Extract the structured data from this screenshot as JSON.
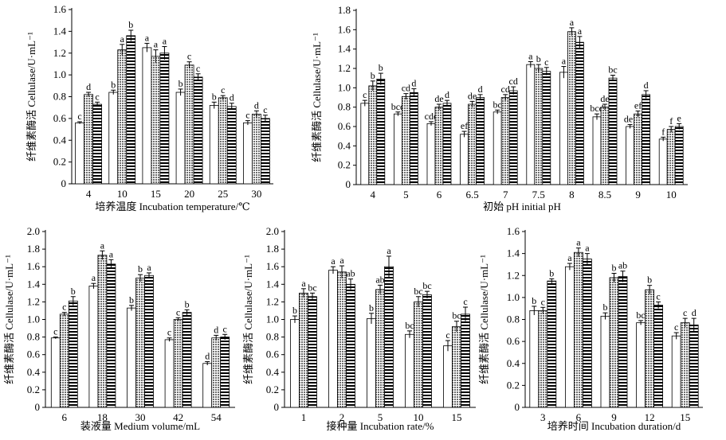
{
  "chart_data": [
    {
      "type": "bar",
      "xlabel": "培养温度 Incubation temperature/℃",
      "ylabel": "纤维素酶活 Cellulase/U·mL⁻¹",
      "ylim": [
        0,
        1.6
      ],
      "yticks": [
        "0",
        "0.2",
        "0.4",
        "0.6",
        "0.8",
        "1.0",
        "1.2",
        "1.4",
        "1.6"
      ],
      "categories": [
        "4",
        "10",
        "15",
        "20",
        "25",
        "30"
      ],
      "series": [
        {
          "pattern": "white",
          "values": [
            0.56,
            0.84,
            1.25,
            0.84,
            0.72,
            0.56
          ],
          "errors": [
            0.01,
            0.02,
            0.04,
            0.03,
            0.03,
            0.02
          ],
          "letters": [
            "c",
            "b",
            "a",
            "b",
            "b",
            "c"
          ]
        },
        {
          "pattern": "crosshatch",
          "values": [
            0.82,
            1.23,
            1.17,
            1.09,
            0.79,
            0.64
          ],
          "errors": [
            0.02,
            0.05,
            0.06,
            0.03,
            0.02,
            0.03
          ],
          "letters": [
            "d",
            "a",
            "a",
            "c",
            "c",
            "d"
          ]
        },
        {
          "pattern": "stripes",
          "values": [
            0.73,
            1.36,
            1.2,
            0.98,
            0.71,
            0.6
          ],
          "errors": [
            0.02,
            0.05,
            0.06,
            0.03,
            0.03,
            0.03
          ],
          "letters": [
            "c",
            "b",
            "a",
            "c",
            "d",
            "c"
          ]
        }
      ]
    },
    {
      "type": "bar",
      "xlabel": "初始 pH initial pH",
      "ylabel": "纤维素酶活 Cellulase/U·mL⁻¹",
      "ylim": [
        0,
        1.8
      ],
      "yticks": [
        "0",
        "0.2",
        "0.4",
        "0.6",
        "0.8",
        "1.0",
        "1.2",
        "1.4",
        "1.6",
        "1.8"
      ],
      "categories": [
        "4",
        "5",
        "6",
        "6.5",
        "7",
        "7.5",
        "8",
        "8.5",
        "9",
        "10"
      ],
      "series": [
        {
          "pattern": "white",
          "values": [
            0.84,
            0.73,
            0.63,
            0.52,
            0.75,
            1.24,
            1.16,
            0.7,
            0.6,
            0.47
          ],
          "errors": [
            0.03,
            0.02,
            0.02,
            0.03,
            0.02,
            0.03,
            0.06,
            0.03,
            0.02,
            0.02
          ],
          "letters": [
            "c",
            "bcd",
            "cde",
            "ef",
            "bc",
            "a",
            "a",
            "bcd",
            "def",
            "f"
          ]
        },
        {
          "pattern": "crosshatch",
          "values": [
            1.02,
            0.91,
            0.8,
            0.83,
            0.9,
            1.2,
            1.58,
            0.8,
            0.73,
            0.57
          ],
          "errors": [
            0.05,
            0.03,
            0.03,
            0.03,
            0.03,
            0.04,
            0.04,
            0.03,
            0.03,
            0.03
          ],
          "letters": [
            "b",
            "cd",
            "de",
            "de",
            "cd",
            "b",
            "a",
            "de",
            "ef",
            "f"
          ]
        },
        {
          "pattern": "stripes",
          "values": [
            1.09,
            0.95,
            0.84,
            0.9,
            0.97,
            1.17,
            1.47,
            1.1,
            0.93,
            0.6
          ],
          "errors": [
            0.06,
            0.04,
            0.03,
            0.03,
            0.04,
            0.04,
            0.06,
            0.03,
            0.04,
            0.03
          ],
          "letters": [
            "b",
            "d",
            "d",
            "d",
            "cd",
            "c",
            "a",
            "bc",
            "d",
            "e"
          ]
        }
      ]
    },
    {
      "type": "bar",
      "xlabel": "装液量 Medium volume/mL",
      "ylabel": "纤维素酶活 Cellulase/U·mL⁻¹",
      "ylim": [
        0,
        2.0
      ],
      "yticks": [
        "0",
        "0.2",
        "0.4",
        "0.6",
        "0.8",
        "1.0",
        "1.2",
        "1.4",
        "1.6",
        "1.8",
        "2.0"
      ],
      "categories": [
        "6",
        "18",
        "30",
        "42",
        "54"
      ],
      "series": [
        {
          "pattern": "white",
          "values": [
            0.79,
            1.38,
            1.13,
            0.77,
            0.5
          ],
          "errors": [
            0.01,
            0.03,
            0.03,
            0.02,
            0.02
          ],
          "letters": [
            "c",
            "a",
            "b",
            "c",
            "d"
          ]
        },
        {
          "pattern": "crosshatch",
          "values": [
            1.06,
            1.73,
            1.47,
            1.0,
            0.79
          ],
          "errors": [
            0.02,
            0.05,
            0.04,
            0.02,
            0.03
          ],
          "letters": [
            "c",
            "a",
            "b",
            "c",
            "d"
          ]
        },
        {
          "pattern": "stripes",
          "values": [
            1.21,
            1.63,
            1.5,
            1.08,
            0.8
          ],
          "errors": [
            0.05,
            0.05,
            0.03,
            0.03,
            0.03
          ],
          "letters": [
            "b",
            "a",
            "a",
            "b",
            "c"
          ]
        }
      ]
    },
    {
      "type": "bar",
      "xlabel": "接种量 Incubation rate/%",
      "ylabel": "纤维素酶活 Cellulase/U·mL⁻¹",
      "ylim": [
        0,
        2.0
      ],
      "yticks": [
        "0",
        "0.2",
        "0.4",
        "0.6",
        "0.8",
        "1.0",
        "1.2",
        "1.4",
        "1.6",
        "1.8",
        "2.0"
      ],
      "categories": [
        "1",
        "2",
        "5",
        "10",
        "15"
      ],
      "series": [
        {
          "pattern": "white",
          "values": [
            1.0,
            1.56,
            1.01,
            0.83,
            0.7
          ],
          "errors": [
            0.04,
            0.04,
            0.06,
            0.04,
            0.06
          ],
          "letters": [
            "b",
            "a",
            "b",
            "bc",
            "c"
          ]
        },
        {
          "pattern": "crosshatch",
          "values": [
            1.3,
            1.54,
            1.34,
            1.2,
            0.92
          ],
          "errors": [
            0.05,
            0.07,
            0.05,
            0.06,
            0.06
          ],
          "letters": [
            "a",
            "a",
            "ab",
            "bc",
            "bc"
          ]
        },
        {
          "pattern": "stripes",
          "values": [
            1.26,
            1.4,
            1.6,
            1.28,
            1.06
          ],
          "errors": [
            0.04,
            0.06,
            0.12,
            0.04,
            0.08
          ],
          "letters": [
            "bc",
            "ab",
            "a",
            "bc",
            "c"
          ]
        }
      ]
    },
    {
      "type": "bar",
      "xlabel": "培养时间 Incubation duration/d",
      "ylabel": "纤维素酶活 Cellulase/U·mL⁻¹",
      "ylim": [
        0,
        1.6
      ],
      "yticks": [
        "0",
        "0.2",
        "0.4",
        "0.6",
        "0.8",
        "1.0",
        "1.2",
        "1.4",
        "1.6"
      ],
      "categories": [
        "3",
        "6",
        "9",
        "12",
        "15"
      ],
      "series": [
        {
          "pattern": "white",
          "values": [
            0.88,
            1.28,
            0.83,
            0.77,
            0.65
          ],
          "errors": [
            0.04,
            0.03,
            0.03,
            0.02,
            0.03
          ],
          "letters": [
            "b",
            "a",
            "b",
            "bc",
            "c"
          ]
        },
        {
          "pattern": "crosshatch",
          "values": [
            0.88,
            1.41,
            1.18,
            1.07,
            0.77
          ],
          "errors": [
            0.03,
            0.04,
            0.04,
            0.04,
            0.04
          ],
          "letters": [
            "c",
            "a",
            "b",
            "b",
            "c"
          ]
        },
        {
          "pattern": "stripes",
          "values": [
            1.15,
            1.35,
            1.19,
            0.93,
            0.75
          ],
          "errors": [
            0.02,
            0.05,
            0.05,
            0.03,
            0.06
          ],
          "letters": [
            "b",
            "a",
            "ab",
            "c",
            "d"
          ]
        }
      ]
    }
  ]
}
